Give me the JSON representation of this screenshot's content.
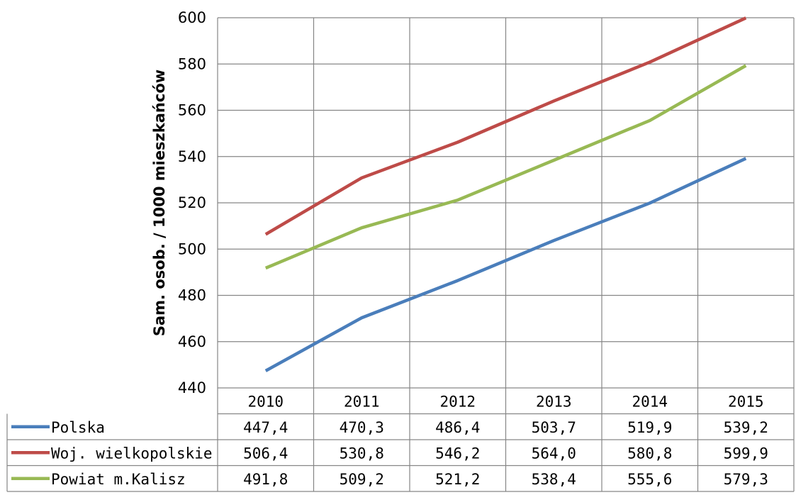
{
  "chart_data": {
    "type": "line",
    "title": "",
    "xlabel": "",
    "ylabel": "Sam. osob. / 1000 mieszkańców",
    "categories": [
      "2010",
      "2011",
      "2012",
      "2013",
      "2014",
      "2015"
    ],
    "ylim": [
      440,
      600
    ],
    "yticks": [
      440,
      460,
      480,
      500,
      520,
      540,
      560,
      580,
      600
    ],
    "grid": true,
    "legend": "data-table",
    "series": [
      {
        "name": "Polska",
        "color": "#4a7ebb",
        "values": [
          447.4,
          470.3,
          486.4,
          503.7,
          519.9,
          539.2
        ],
        "labels": [
          "447,4",
          "470,3",
          "486,4",
          "503,7",
          "519,9",
          "539,2"
        ]
      },
      {
        "name": "Woj. wielkopolskie",
        "color": "#be4b48",
        "values": [
          506.4,
          530.8,
          546.2,
          564.0,
          580.8,
          599.9
        ],
        "labels": [
          "506,4",
          "530,8",
          "546,2",
          "564,0",
          "580,8",
          "599,9"
        ]
      },
      {
        "name": "Powiat m.Kalisz",
        "color": "#98b954",
        "values": [
          491.8,
          509.2,
          521.2,
          538.4,
          555.6,
          579.3
        ],
        "labels": [
          "491,8",
          "509,2",
          "521,2",
          "538,4",
          "555,6",
          "579,3"
        ]
      }
    ]
  }
}
